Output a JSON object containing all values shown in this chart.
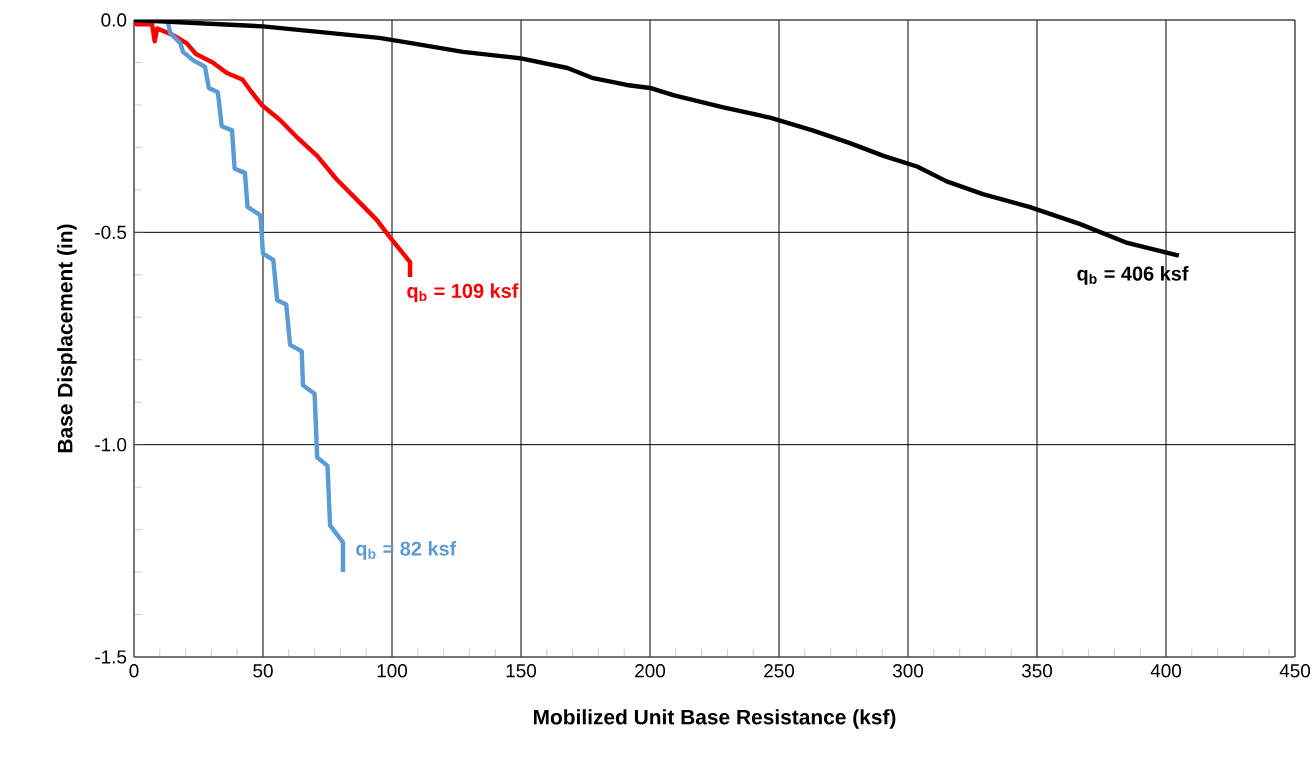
{
  "chart_data": {
    "type": "line",
    "xlabel": "Mobilized Unit Base Resistance (ksf)",
    "ylabel": "Base Displacement (in)",
    "xlim": [
      0,
      450
    ],
    "ylim": [
      -1.5,
      0
    ],
    "xticks": [
      0,
      50,
      100,
      150,
      200,
      250,
      300,
      350,
      400,
      450
    ],
    "yticks": [
      {
        "value": 0,
        "label": "0.0"
      },
      {
        "value": -0.5,
        "label": "-0.5"
      },
      {
        "value": -1.0,
        "label": "-1.0"
      },
      {
        "value": -1.5,
        "label": "-1.5"
      }
    ],
    "grid": true,
    "marker": "none",
    "line_style": "solid",
    "series": [
      {
        "color": "#ff0000",
        "x": [
          0,
          1,
          7,
          8,
          9,
          15,
          20.5,
          24,
          30.5,
          36,
          42,
          45,
          49.5,
          56.5,
          63,
          71,
          78.5,
          87.5,
          94,
          99,
          103,
          107,
          107
        ],
        "values": [
          0,
          -0.01,
          -0.01,
          -0.05,
          -0.02,
          -0.035,
          -0.055,
          -0.08,
          -0.1,
          -0.125,
          -0.14,
          -0.165,
          -0.2,
          -0.235,
          -0.275,
          -0.32,
          -0.375,
          -0.43,
          -0.47,
          -0.51,
          -0.54,
          -0.57,
          -0.605
        ]
      },
      {
        "color": "#5b9bd5",
        "x": [
          0,
          13,
          14,
          18,
          19,
          23,
          27.5,
          29,
          32.5,
          34,
          38,
          39,
          43,
          44,
          49,
          50,
          54,
          55.5,
          59,
          60.5,
          65,
          65.5,
          70,
          71,
          75,
          76,
          81,
          81
        ],
        "values": [
          0,
          0,
          -0.03,
          -0.055,
          -0.075,
          -0.095,
          -0.11,
          -0.16,
          -0.17,
          -0.25,
          -0.26,
          -0.35,
          -0.36,
          -0.44,
          -0.46,
          -0.55,
          -0.565,
          -0.66,
          -0.67,
          -0.765,
          -0.78,
          -0.86,
          -0.88,
          -1.03,
          -1.05,
          -1.19,
          -1.23,
          -1.3
        ]
      },
      {
        "color": "#000000",
        "x": [
          0,
          50,
          95,
          108,
          127.5,
          149.5,
          168,
          178,
          191,
          200,
          209,
          228,
          246.5,
          263,
          277.5,
          290.5,
          303.5,
          315,
          329,
          347,
          366.5,
          385,
          405
        ],
        "values": [
          0,
          -0.015,
          -0.042,
          -0.055,
          -0.075,
          -0.09,
          -0.113,
          -0.137,
          -0.153,
          -0.16,
          -0.177,
          -0.205,
          -0.23,
          -0.26,
          -0.29,
          -0.32,
          -0.345,
          -0.38,
          -0.41,
          -0.44,
          -0.48,
          -0.525,
          -0.555
        ]
      }
    ],
    "annotations": [
      "q$_{b}$ = 109 ksf",
      "q$_{b}$ = 82 ksf",
      "q$_{b}$ = 406 ksf"
    ]
  }
}
